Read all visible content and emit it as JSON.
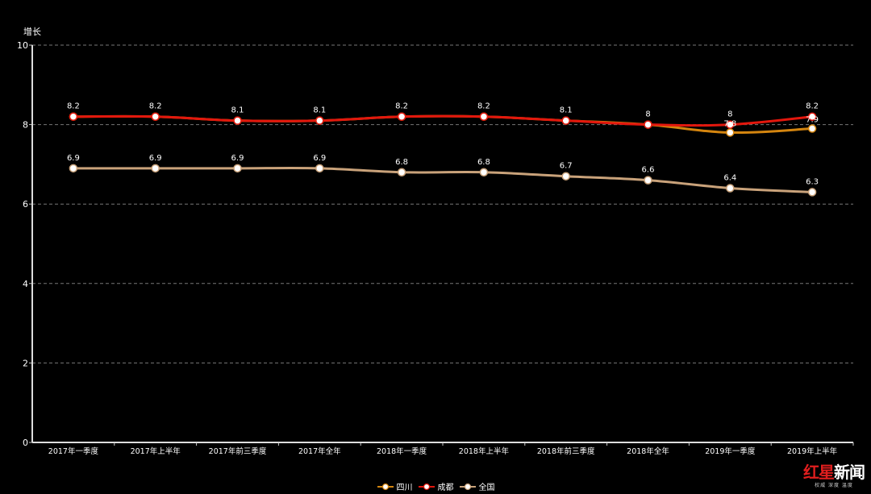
{
  "chart_data": {
    "type": "line",
    "ylabel": "增长",
    "ylim": [
      0,
      10
    ],
    "yticks": [
      0,
      2,
      4,
      6,
      8,
      10
    ],
    "grid": true,
    "legend_position": "bottom-center",
    "categories": [
      "2017年一季度",
      "2017年上半年",
      "2017年前三季度",
      "2017年全年",
      "2018年一季度",
      "2018年上半年",
      "2018年前三季度",
      "2018年全年",
      "2019年一季度",
      "2019年上半年"
    ],
    "series": [
      {
        "name": "四川",
        "color": "#d4850f",
        "values": [
          8.2,
          8.2,
          8.1,
          8.1,
          8.2,
          8.2,
          8.1,
          8.0,
          7.8,
          7.9
        ]
      },
      {
        "name": "成都",
        "color": "#e3170d",
        "values": [
          8.2,
          8.2,
          8.1,
          8.1,
          8.2,
          8.2,
          8.1,
          8.0,
          8.0,
          8.2
        ]
      },
      {
        "name": "全国",
        "color": "#c9a27a",
        "values": [
          6.9,
          6.9,
          6.9,
          6.9,
          6.8,
          6.8,
          6.7,
          6.6,
          6.4,
          6.3
        ]
      }
    ]
  },
  "watermark": {
    "logo_a": "红",
    "logo_b": "星",
    "logo_c": "新闻",
    "sub": "权威 深度 温度"
  }
}
